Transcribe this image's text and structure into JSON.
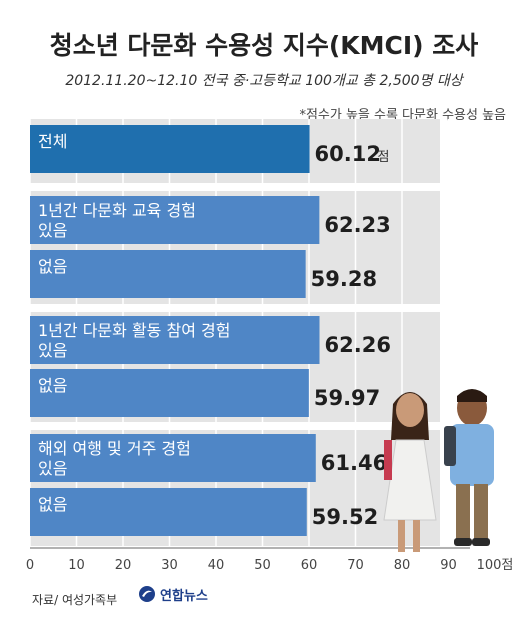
{
  "header": {
    "title": "청소년 다문화 수용성 지수(KMCI) 조사",
    "subtitle": "2012.11.20~12.10 전국 중·고등학교 100개교 총 2,500명 대상",
    "note": "*점수가 높을 수록 다문화 수용성 높음"
  },
  "chart_data": {
    "type": "bar",
    "orientation": "horizontal",
    "unit": "점",
    "xlim": [
      0,
      100
    ],
    "xticks": [
      "0",
      "10",
      "20",
      "30",
      "40",
      "50",
      "60",
      "70",
      "80",
      "90",
      "100점"
    ],
    "groups": [
      {
        "bars": [
          {
            "label": "전체",
            "value": 60.12
          }
        ]
      },
      {
        "bars": [
          {
            "label": "1년간 다문화 교육 경험",
            "label2": "있음",
            "value": 62.23
          },
          {
            "label": "없음",
            "value": 59.28
          }
        ]
      },
      {
        "bars": [
          {
            "label": "1년간 다문화 활동 참여 경험",
            "label2": "있음",
            "value": 62.26
          },
          {
            "label": "없음",
            "value": 59.97
          }
        ]
      },
      {
        "bars": [
          {
            "label": "해외 여행 및 거주 경험",
            "label2": "있음",
            "value": 61.46
          },
          {
            "label": "없음",
            "value": 59.52
          }
        ]
      }
    ],
    "colors": {
      "total": "#1f6fae",
      "bar": "#4f86c6",
      "panel": "#e4e4e4",
      "panel_alt": "#d9d9d9"
    }
  },
  "footer": {
    "source": "자료/ 여성가족부",
    "logo_text": "연합뉴스"
  }
}
